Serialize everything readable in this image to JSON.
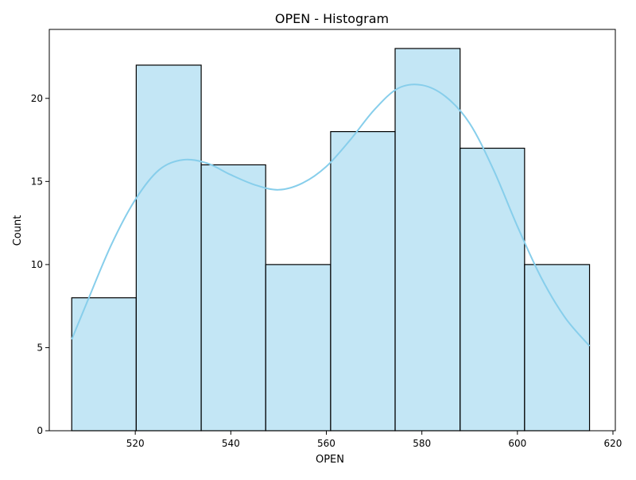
{
  "chart_data": {
    "type": "bar",
    "title": "OPEN  - Histogram",
    "xlabel": "OPEN",
    "ylabel": "Count",
    "bin_edges": [
      506.7,
      520.2,
      533.8,
      547.3,
      560.9,
      574.4,
      588.0,
      601.5,
      615.1
    ],
    "counts": [
      8,
      22,
      16,
      10,
      18,
      23,
      17,
      10
    ],
    "xlim": [
      502.0,
      620.5
    ],
    "ylim": [
      0,
      24.15
    ],
    "xticks": [
      520,
      540,
      560,
      580,
      600,
      620
    ],
    "yticks": [
      0,
      5,
      10,
      15,
      20
    ],
    "grid": false,
    "bar_color": "#87CEEB",
    "edge_color": "#000000",
    "kde": {
      "color": "#87CEEB",
      "x": [
        506.7,
        510,
        515,
        520,
        525,
        530,
        535,
        540,
        545,
        550,
        555,
        560,
        565,
        570,
        575,
        580,
        585,
        590,
        595,
        600,
        605,
        610,
        615.1
      ],
      "y": [
        5.5,
        7.8,
        11.2,
        13.9,
        15.7,
        16.3,
        16.1,
        15.4,
        14.8,
        14.5,
        14.9,
        15.9,
        17.5,
        19.3,
        20.6,
        20.8,
        20.1,
        18.5,
        15.7,
        12.3,
        9.2,
        6.8,
        5.1
      ]
    }
  }
}
